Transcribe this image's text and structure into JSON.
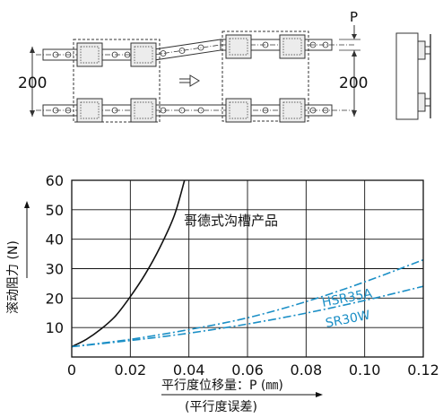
{
  "diagram": {
    "label_p": "P",
    "label_left": "200",
    "label_right": "200"
  },
  "chart_data": {
    "type": "line",
    "xlabel": "平行度位移量：P (㎜)",
    "xlabel_sub": "(平行度误差)",
    "ylabel": "滚动阻力 (N)",
    "xlim": [
      0,
      0.12
    ],
    "ylim": [
      0,
      60
    ],
    "x_ticks": [
      "0",
      "0.02",
      "0.04",
      "0.06",
      "0.08",
      "0.10",
      "0.12"
    ],
    "y_ticks": [
      "10",
      "20",
      "30",
      "40",
      "50",
      "60"
    ],
    "grid": true,
    "series": [
      {
        "name": "哥德式沟槽产品",
        "style": "solid",
        "color": "#111111",
        "x": [
          0,
          0.005,
          0.01,
          0.015,
          0.02,
          0.025,
          0.03,
          0.035,
          0.0385
        ],
        "y": [
          3.5,
          6,
          9.5,
          14,
          20.5,
          28,
          37,
          48,
          60
        ]
      },
      {
        "name": "HSR35A",
        "style": "dashdot",
        "color": "#1b8fc6",
        "x": [
          0,
          0.02,
          0.04,
          0.06,
          0.08,
          0.1,
          0.12
        ],
        "y": [
          3.5,
          6,
          9.3,
          13.3,
          18.8,
          25.5,
          33
        ]
      },
      {
        "name": "SR30W",
        "style": "dashdot",
        "color": "#1b8fc6",
        "x": [
          0,
          0.02,
          0.04,
          0.06,
          0.08,
          0.1,
          0.12
        ],
        "y": [
          3.5,
          5.6,
          8.1,
          11.2,
          14.9,
          19.2,
          24
        ]
      }
    ]
  }
}
